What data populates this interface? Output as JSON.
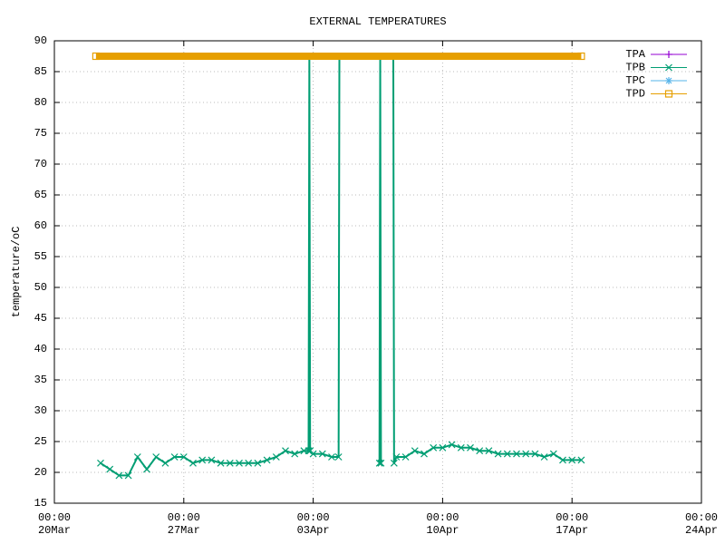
{
  "chart_data": {
    "type": "line",
    "title": "EXTERNAL TEMPERATURES",
    "y_label": "temperature/oC",
    "xlim": [
      "00:00 20Mar",
      "00:00 24Apr"
    ],
    "xticks": [
      "00:00 20Mar",
      "00:00 27Mar",
      "00:00 03Apr",
      "00:00 10Apr",
      "00:00 17Apr",
      "00:00 24Apr"
    ],
    "ylim": [
      15,
      90
    ],
    "yticks": [
      15,
      20,
      25,
      30,
      35,
      40,
      45,
      50,
      55,
      60,
      65,
      70,
      75,
      80,
      85,
      90
    ],
    "grid": true,
    "legend": "top-right",
    "series": [
      {
        "name": "TPA",
        "color": "#9400d3",
        "x": [],
        "values": []
      },
      {
        "name": "TPB",
        "color": "#009e73",
        "x": [
          "12:00 22Mar",
          "00:00 23Mar",
          "12:00 23Mar",
          "00:00 24Mar",
          "12:00 24Mar",
          "00:00 25Mar",
          "12:00 25Mar",
          "00:00 26Mar",
          "12:00 26Mar",
          "00:00 27Mar",
          "12:00 27Mar",
          "00:00 28Mar",
          "12:00 28Mar",
          "00:00 29Mar",
          "12:00 29Mar",
          "00:00 30Mar",
          "12:00 30Mar",
          "00:00 31Mar",
          "12:00 31Mar",
          "00:00 01Apr",
          "12:00 01Apr",
          "00:00 02Apr",
          "12:00 02Apr",
          "18:00 02Apr",
          "19:00 02Apr",
          "20:00 02Apr",
          "00:00 03Apr",
          "12:00 03Apr",
          "00:00 04Apr",
          "09:00 04Apr",
          "10:00 04Apr",
          "12:00 05Apr",
          "14:00 06Apr",
          "15:00 06Apr",
          "16:00 06Apr",
          "00:00 07Apr",
          "08:00 07Apr",
          "09:00 07Apr",
          "12:00 07Apr",
          "00:00 08Apr",
          "12:00 08Apr",
          "00:00 09Apr",
          "12:00 09Apr",
          "00:00 10Apr",
          "12:00 10Apr",
          "00:00 11Apr",
          "12:00 11Apr",
          "00:00 12Apr",
          "12:00 12Apr",
          "00:00 13Apr",
          "12:00 13Apr",
          "00:00 14Apr",
          "12:00 14Apr",
          "00:00 15Apr",
          "12:00 15Apr",
          "00:00 16Apr",
          "12:00 16Apr",
          "00:00 17Apr",
          "12:00 17Apr"
        ],
        "values": [
          21.5,
          20.5,
          19.5,
          19.5,
          22.5,
          20.5,
          22.5,
          21.5,
          22.5,
          22.5,
          21.5,
          22,
          22,
          21.5,
          21.5,
          21.5,
          21.5,
          21.5,
          22,
          22.5,
          23.5,
          23,
          23.5,
          23.5,
          87.5,
          23.5,
          23,
          23,
          22.5,
          22.5,
          87.5,
          null,
          21.5,
          87.5,
          21.5,
          null,
          87.5,
          21.5,
          22.5,
          22.5,
          23.5,
          23,
          24,
          24,
          24.5,
          24,
          24,
          23.5,
          23.5,
          23,
          23,
          23,
          23,
          23,
          22.5,
          23,
          22,
          22,
          22
        ]
      },
      {
        "name": "TPC",
        "color": "#56b4e9",
        "x": [],
        "values": []
      },
      {
        "name": "TPD",
        "color": "#e69f00",
        "x": [
          "06:00 22Mar",
          "12:00 17Apr"
        ],
        "values": [
          87.5,
          87.5
        ]
      }
    ]
  }
}
